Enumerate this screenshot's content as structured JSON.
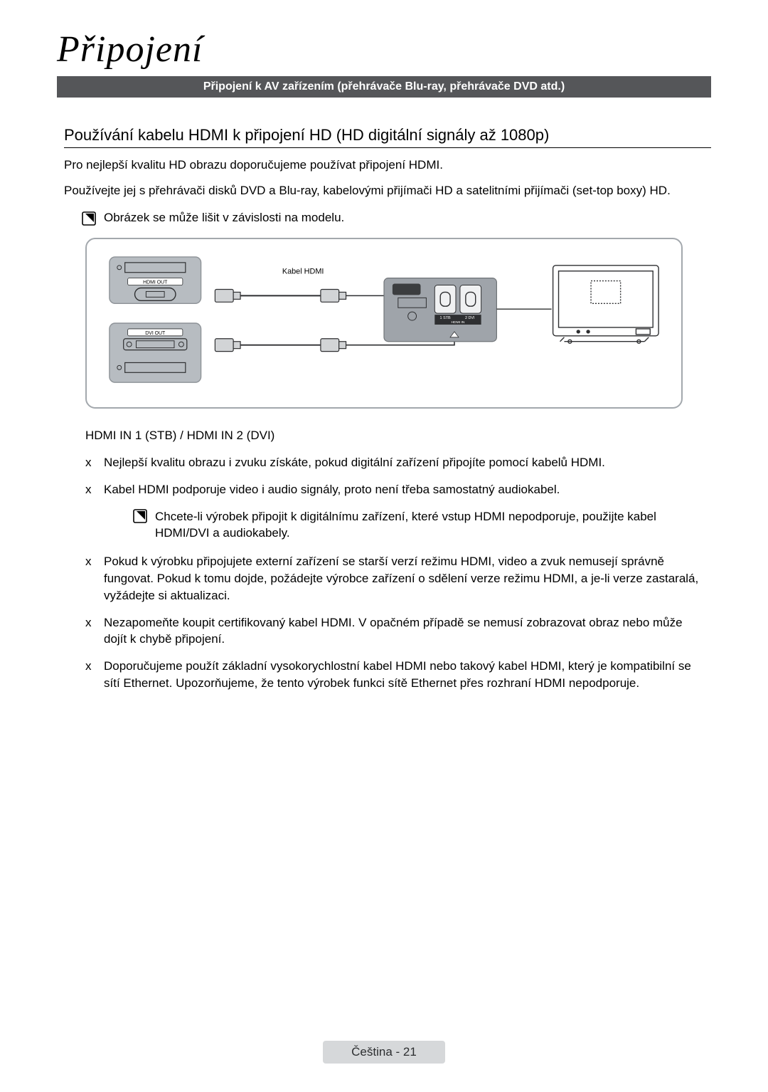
{
  "title": "Připojení",
  "banner": "Připojení k AV zařízením (přehrávače Blu-ray, přehrávače DVD atd.)",
  "subtitle": "Používání kabelu HDMI k připojení HD (HD digitální signály až 1080p)",
  "intro1": "Pro nejlepší kvalitu HD obrazu doporučujeme používat připojení HDMI.",
  "intro2": "Používejte jej s přehrávači disků DVD a Blu-ray, kabelovými přijímači HD a satelitními přijímači (set-top boxy) HD.",
  "diagram_note": "Obrázek se může lišit v závislosti na modelu.",
  "diagram": {
    "hdmi_out_label": "HDMI OUT",
    "dvi_out_label": "DVI OUT",
    "cable_label": "Kabel HDMI",
    "hdmi_in_label": "HDMI IN",
    "hdmi_in_1": "1 STB",
    "hdmi_in_2": "2 DVI",
    "border_color": "#a3a8ad",
    "panel_fill": "#b7bcc1",
    "panel_stroke": "#8d9297",
    "dark_stroke": "#2e2f31"
  },
  "port_title": "HDMI IN 1 (STB) / HDMI IN 2 (DVI)",
  "bullets": [
    "Nejlepší kvalitu obrazu i zvuku získáte, pokud digitální zařízení připojíte pomocí kabelů HDMI.",
    "Kabel HDMI podporuje video i audio signály, proto není třeba samostatný audiokabel.",
    "_SUBNOTE_Chcete-li výrobek připojit k digitálnímu zařízení, které vstup HDMI nepodporuje, použijte kabel HDMI/DVI a audiokabely.",
    "Pokud k výrobku připojujete externí zařízení se starší verzí režimu HDMI, video a zvuk nemusejí správně fungovat. Pokud k tomu dojde, požádejte výrobce zařízení o sdělení verze režimu HDMI, a je-li verze zastaralá, vyžádejte si aktualizaci.",
    "Nezapomeňte koupit certifikovaný kabel HDMI. V opačném případě se nemusí zobrazovat obraz nebo může dojít k chybě připojení.",
    "Doporučujeme použít základní vysokorychlostní kabel HDMI nebo takový kabel HDMI, který je kompatibilní se sítí Ethernet. Upozorňujeme, že tento výrobek funkci sítě Ethernet přes rozhraní HDMI nepodporuje."
  ],
  "footer": "Čeština - 21",
  "footer_bg": "#d6d8da"
}
